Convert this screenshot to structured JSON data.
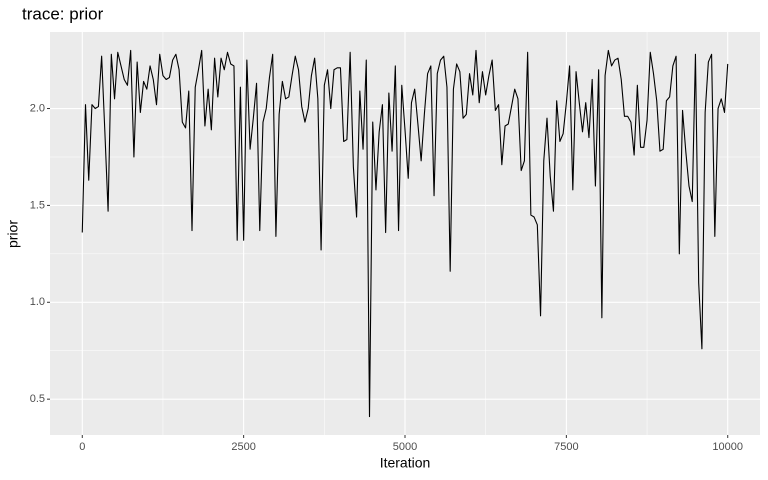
{
  "chart_data": {
    "type": "line",
    "title": "trace: prior",
    "x_label": "Iteration",
    "y_label": "prior",
    "color": "#000000",
    "grid": true,
    "xlim": [
      -500,
      10500
    ],
    "ylim": [
      0.315,
      2.395
    ],
    "xticks": [
      0,
      2500,
      5000,
      7500,
      10000
    ],
    "yticks": [
      0.5,
      {
        "value": 1,
        "label": "1.0"
      },
      1.5,
      {
        "value": 2,
        "label": "2.0"
      }
    ],
    "x": [
      0,
      50,
      100,
      150,
      200,
      250,
      300,
      350,
      400,
      450,
      500,
      550,
      600,
      650,
      700,
      750,
      800,
      850,
      900,
      950,
      1000,
      1050,
      1100,
      1150,
      1200,
      1250,
      1300,
      1350,
      1400,
      1450,
      1500,
      1550,
      1600,
      1650,
      1700,
      1750,
      1800,
      1850,
      1900,
      1950,
      2000,
      2050,
      2100,
      2150,
      2200,
      2250,
      2300,
      2350,
      2400,
      2450,
      2500,
      2550,
      2600,
      2650,
      2700,
      2750,
      2800,
      2850,
      2900,
      2950,
      3000,
      3050,
      3100,
      3150,
      3200,
      3250,
      3300,
      3350,
      3400,
      3450,
      3500,
      3550,
      3600,
      3650,
      3700,
      3750,
      3800,
      3850,
      3900,
      3950,
      4000,
      4050,
      4100,
      4150,
      4200,
      4250,
      4300,
      4350,
      4400,
      4450,
      4500,
      4550,
      4600,
      4650,
      4700,
      4750,
      4800,
      4850,
      4900,
      4950,
      5000,
      5050,
      5100,
      5150,
      5200,
      5250,
      5300,
      5350,
      5400,
      5450,
      5500,
      5550,
      5600,
      5650,
      5700,
      5750,
      5800,
      5850,
      5900,
      5950,
      6000,
      6050,
      6100,
      6150,
      6200,
      6250,
      6300,
      6350,
      6400,
      6450,
      6500,
      6550,
      6600,
      6650,
      6700,
      6750,
      6800,
      6850,
      6900,
      6950,
      7000,
      7050,
      7100,
      7150,
      7200,
      7250,
      7300,
      7350,
      7400,
      7450,
      7500,
      7550,
      7600,
      7650,
      7700,
      7750,
      7800,
      7850,
      7900,
      7950,
      8000,
      8050,
      8100,
      8150,
      8200,
      8250,
      8300,
      8350,
      8400,
      8450,
      8500,
      8550,
      8600,
      8650,
      8700,
      8750,
      8800,
      8850,
      8900,
      8950,
      9000,
      9050,
      9100,
      9150,
      9200,
      9250,
      9300,
      9350,
      9400,
      9450,
      9500,
      9550,
      9600,
      9650,
      9700,
      9750,
      9800,
      9850,
      9900,
      9950,
      10000
    ],
    "values": [
      1.36,
      2.02,
      1.63,
      2.02,
      2.0,
      2.01,
      2.27,
      1.88,
      1.47,
      2.28,
      2.05,
      2.29,
      2.22,
      2.15,
      2.12,
      2.3,
      1.75,
      2.24,
      1.98,
      2.14,
      2.1,
      2.22,
      2.15,
      2.02,
      2.28,
      2.17,
      2.15,
      2.16,
      2.25,
      2.28,
      2.2,
      1.93,
      1.9,
      2.09,
      1.37,
      2.11,
      2.2,
      2.3,
      1.91,
      2.1,
      1.89,
      2.26,
      2.06,
      2.26,
      2.2,
      2.29,
      2.23,
      2.22,
      1.32,
      2.11,
      1.32,
      2.25,
      1.79,
      1.95,
      2.13,
      1.37,
      1.93,
      2.0,
      2.16,
      2.28,
      1.34,
      1.97,
      2.14,
      2.05,
      2.06,
      2.17,
      2.27,
      2.2,
      2.01,
      1.93,
      2.0,
      2.17,
      2.26,
      2.05,
      1.27,
      2.12,
      2.2,
      2.0,
      2.2,
      2.21,
      2.21,
      1.83,
      1.84,
      2.29,
      1.7,
      1.44,
      2.09,
      1.79,
      2.25,
      0.41,
      1.93,
      1.58,
      1.88,
      2.02,
      1.36,
      2.08,
      1.78,
      2.22,
      1.37,
      2.12,
      1.89,
      1.64,
      2.03,
      2.1,
      1.92,
      1.73,
      1.97,
      2.18,
      2.22,
      1.55,
      2.18,
      2.25,
      2.27,
      2.11,
      1.16,
      2.1,
      2.23,
      2.19,
      1.95,
      1.97,
      2.18,
      2.07,
      2.3,
      2.03,
      2.19,
      2.07,
      2.17,
      2.25,
      1.99,
      2.02,
      1.71,
      1.91,
      1.92,
      2.01,
      2.1,
      2.05,
      1.68,
      1.73,
      2.29,
      1.45,
      1.44,
      1.4,
      0.93,
      1.73,
      1.95,
      1.65,
      1.47,
      2.04,
      1.83,
      1.87,
      2.03,
      2.22,
      1.58,
      2.19,
      2.03,
      1.88,
      2.03,
      1.85,
      2.15,
      1.6,
      2.2,
      0.92,
      2.17,
      2.3,
      2.22,
      2.25,
      2.26,
      2.15,
      1.96,
      1.96,
      1.93,
      1.76,
      2.12,
      1.8,
      1.8,
      1.94,
      2.29,
      2.18,
      2.04,
      1.78,
      1.79,
      2.04,
      2.06,
      2.22,
      2.27,
      1.25,
      1.99,
      1.78,
      1.6,
      1.52,
      2.28,
      1.1,
      0.76,
      1.98,
      2.24,
      2.28,
      1.34,
      2.0,
      2.05,
      1.98,
      2.23
    ]
  }
}
